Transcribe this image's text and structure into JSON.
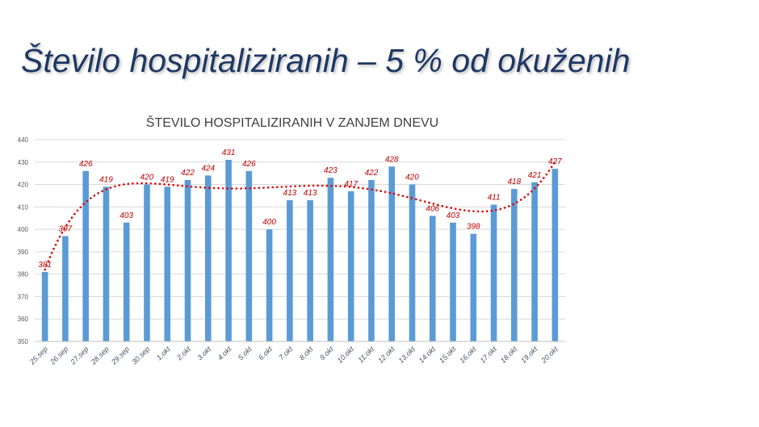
{
  "slide": {
    "title": "Število hospitaliziranih – 5 % od okuženih"
  },
  "chart_data": {
    "type": "bar",
    "title": "ŠTEVILO HOSPITALIZIRANIH V ZANJEM DNEVU",
    "categories": [
      "25.sep",
      "26.sep",
      "27.sep",
      "28.sep",
      "29.sep",
      "30.sep",
      "1.okt",
      "2.okt",
      "3.okt",
      "4.okt",
      "5.okt",
      "6.okt",
      "7.okt",
      "8.okt",
      "9.okt",
      "10.okt",
      "11.okt",
      "12.okt",
      "13.okt",
      "14.okt",
      "15.okt",
      "16.okt",
      "17.okt",
      "18.okt",
      "19.okt",
      "20.okt"
    ],
    "values": [
      381,
      397,
      426,
      419,
      403,
      420,
      419,
      422,
      424,
      431,
      426,
      400,
      413,
      413,
      423,
      417,
      422,
      428,
      420,
      406,
      403,
      398,
      411,
      418,
      421,
      427
    ],
    "ylim": [
      350,
      440
    ],
    "yticks": [
      350,
      360,
      370,
      380,
      390,
      400,
      410,
      420,
      430,
      440
    ],
    "grid": true,
    "data_labels": true,
    "trendline": {
      "type": "polynomial",
      "style": "dotted"
    },
    "xlabel": "",
    "ylabel": "",
    "colors": {
      "bar": "#5b9bd5",
      "label": "#c00000",
      "trend": "#e00000",
      "grid": "#d9d9d9"
    }
  }
}
